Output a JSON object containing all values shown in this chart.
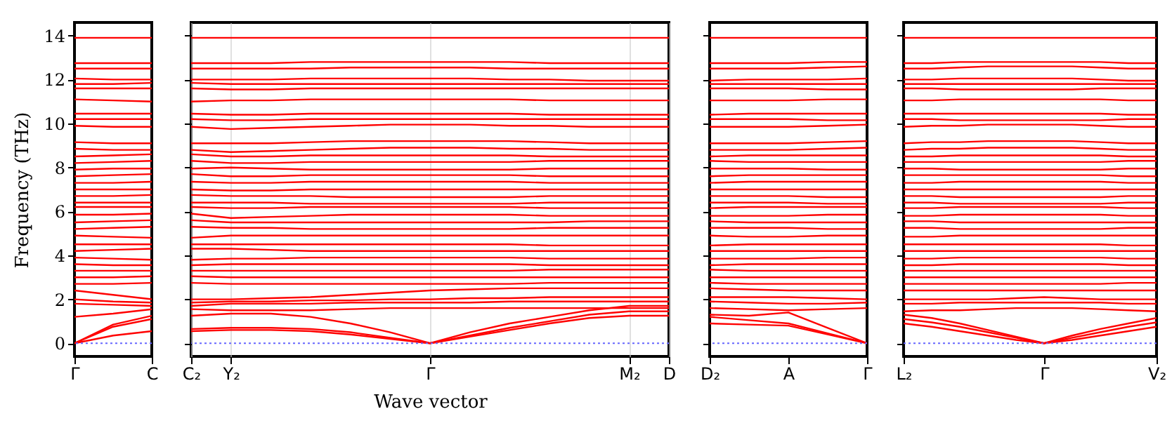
{
  "chart_data": [
    {
      "type": "line",
      "ylabel": "Frequency (THz)",
      "categories": [
        "Γ",
        null,
        "C"
      ],
      "ylim": [
        -0.6,
        14.6
      ],
      "yticks": [
        0,
        2,
        4,
        6,
        8,
        10,
        12,
        14
      ],
      "ref_lines": [
        {
          "axis": "y",
          "value": 0,
          "color": "#6666ff",
          "line_style": "dotted"
        }
      ],
      "series": [
        {
          "color": "#ff0000",
          "values": [
            13.9,
            13.9,
            13.9
          ]
        },
        {
          "color": "#ff0000",
          "values": [
            12.75,
            12.75,
            12.75
          ]
        },
        {
          "color": "#ff0000",
          "values": [
            12.5,
            12.5,
            12.5
          ]
        },
        {
          "color": "#ff0000",
          "values": [
            12.05,
            12.0,
            12.0
          ]
        },
        {
          "color": "#ff0000",
          "values": [
            11.8,
            11.8,
            11.85
          ]
        },
        {
          "color": "#ff0000",
          "values": [
            11.6,
            11.6,
            11.6
          ]
        },
        {
          "color": "#ff0000",
          "values": [
            11.1,
            11.05,
            11.0
          ]
        },
        {
          "color": "#ff0000",
          "values": [
            10.45,
            10.45,
            10.45
          ]
        },
        {
          "color": "#ff0000",
          "values": [
            10.2,
            10.2,
            10.2
          ]
        },
        {
          "color": "#ff0000",
          "values": [
            9.9,
            9.85,
            9.85
          ]
        },
        {
          "color": "#ff0000",
          "values": [
            9.15,
            9.1,
            9.1
          ]
        },
        {
          "color": "#ff0000",
          "values": [
            8.85,
            8.8,
            8.8
          ]
        },
        {
          "color": "#ff0000",
          "values": [
            8.5,
            8.55,
            8.6
          ]
        },
        {
          "color": "#ff0000",
          "values": [
            8.2,
            8.25,
            8.3
          ]
        },
        {
          "color": "#ff0000",
          "values": [
            7.9,
            7.95,
            7.95
          ]
        },
        {
          "color": "#ff0000",
          "values": [
            7.6,
            7.65,
            7.7
          ]
        },
        {
          "color": "#ff0000",
          "values": [
            7.3,
            7.3,
            7.35
          ]
        },
        {
          "color": "#ff0000",
          "values": [
            7.0,
            7.0,
            7.0
          ]
        },
        {
          "color": "#ff0000",
          "values": [
            6.7,
            6.7,
            6.75
          ]
        },
        {
          "color": "#ff0000",
          "values": [
            6.4,
            6.4,
            6.4
          ]
        },
        {
          "color": "#ff0000",
          "values": [
            6.2,
            6.2,
            6.2
          ]
        },
        {
          "color": "#ff0000",
          "values": [
            5.85,
            5.85,
            5.9
          ]
        },
        {
          "color": "#ff0000",
          "values": [
            5.5,
            5.55,
            5.6
          ]
        },
        {
          "color": "#ff0000",
          "values": [
            5.2,
            5.25,
            5.3
          ]
        },
        {
          "color": "#ff0000",
          "values": [
            4.9,
            4.85,
            4.8
          ]
        },
        {
          "color": "#ff0000",
          "values": [
            4.5,
            4.5,
            4.5
          ]
        },
        {
          "color": "#ff0000",
          "values": [
            4.2,
            4.25,
            4.3
          ]
        },
        {
          "color": "#ff0000",
          "values": [
            3.9,
            3.85,
            3.8
          ]
        },
        {
          "color": "#ff0000",
          "values": [
            3.6,
            3.55,
            3.55
          ]
        },
        {
          "color": "#ff0000",
          "values": [
            3.3,
            3.3,
            3.3
          ]
        },
        {
          "color": "#ff0000",
          "values": [
            3.0,
            3.0,
            3.05
          ]
        },
        {
          "color": "#ff0000",
          "values": [
            2.7,
            2.7,
            2.75
          ]
        },
        {
          "color": "#ff0000",
          "values": [
            2.4,
            2.2,
            2.0
          ]
        },
        {
          "color": "#ff0000",
          "values": [
            2.0,
            1.9,
            1.85
          ]
        },
        {
          "color": "#ff0000",
          "values": [
            1.8,
            1.75,
            1.7
          ]
        },
        {
          "color": "#ff0000",
          "values": [
            1.2,
            1.35,
            1.55
          ]
        },
        {
          "color": "#ff0000",
          "values": [
            0,
            0.35,
            0.55
          ]
        },
        {
          "color": "#ff0000",
          "values": [
            0,
            0.75,
            1.1
          ]
        },
        {
          "color": "#ff0000",
          "values": [
            0,
            0.85,
            1.25
          ]
        }
      ]
    },
    {
      "type": "line",
      "xlabel": "Wave vector",
      "categories": [
        "C₂",
        "Y₂",
        null,
        null,
        null,
        null,
        "Γ",
        null,
        null,
        null,
        null,
        "M₂",
        "D"
      ],
      "ylim": [
        -0.6,
        14.6
      ],
      "yticks": [
        0,
        2,
        4,
        6,
        8,
        10,
        12,
        14
      ],
      "grid": "x",
      "tick_labels": "x",
      "ref_lines": [
        {
          "axis": "y",
          "value": 0,
          "color": "#6666ff",
          "line_style": "dotted"
        }
      ],
      "series": [
        {
          "color": "#ff0000",
          "values": [
            13.9,
            13.9,
            13.9,
            13.9,
            13.9,
            13.9,
            13.9,
            13.9,
            13.9,
            13.9,
            13.9,
            13.9,
            13.9
          ]
        },
        {
          "color": "#ff0000",
          "values": [
            12.75,
            12.75,
            12.75,
            12.8,
            12.8,
            12.8,
            12.8,
            12.8,
            12.8,
            12.75,
            12.75,
            12.75,
            12.75
          ]
        },
        {
          "color": "#ff0000",
          "values": [
            12.5,
            12.5,
            12.5,
            12.5,
            12.55,
            12.55,
            12.55,
            12.55,
            12.5,
            12.5,
            12.5,
            12.5,
            12.5
          ]
        },
        {
          "color": "#ff0000",
          "values": [
            12.0,
            12.0,
            12.0,
            12.05,
            12.05,
            12.05,
            12.05,
            12.05,
            12.0,
            12.0,
            11.95,
            11.95,
            11.95
          ]
        },
        {
          "color": "#ff0000",
          "values": [
            11.85,
            11.8,
            11.8,
            11.8,
            11.8,
            11.8,
            11.8,
            11.8,
            11.8,
            11.8,
            11.8,
            11.8,
            11.8
          ]
        },
        {
          "color": "#ff0000",
          "values": [
            11.6,
            11.55,
            11.55,
            11.6,
            11.6,
            11.6,
            11.6,
            11.6,
            11.6,
            11.6,
            11.6,
            11.6,
            11.6
          ]
        },
        {
          "color": "#ff0000",
          "values": [
            11.0,
            11.05,
            11.05,
            11.1,
            11.1,
            11.1,
            11.1,
            11.1,
            11.1,
            11.05,
            11.05,
            11.05,
            11.05
          ]
        },
        {
          "color": "#ff0000",
          "values": [
            10.45,
            10.4,
            10.4,
            10.45,
            10.45,
            10.45,
            10.45,
            10.45,
            10.45,
            10.4,
            10.4,
            10.4,
            10.4
          ]
        },
        {
          "color": "#ff0000",
          "values": [
            10.2,
            10.15,
            10.15,
            10.2,
            10.2,
            10.2,
            10.2,
            10.2,
            10.2,
            10.2,
            10.2,
            10.2,
            10.2
          ]
        },
        {
          "color": "#ff0000",
          "values": [
            9.85,
            9.75,
            9.8,
            9.85,
            9.9,
            9.95,
            9.95,
            9.95,
            9.9,
            9.9,
            9.85,
            9.85,
            9.85
          ]
        },
        {
          "color": "#ff0000",
          "values": [
            9.1,
            9.1,
            9.1,
            9.15,
            9.2,
            9.2,
            9.2,
            9.2,
            9.2,
            9.15,
            9.1,
            9.1,
            9.1
          ]
        },
        {
          "color": "#ff0000",
          "values": [
            8.8,
            8.7,
            8.75,
            8.8,
            8.85,
            8.9,
            8.9,
            8.9,
            8.85,
            8.85,
            8.8,
            8.8,
            8.8
          ]
        },
        {
          "color": "#ff0000",
          "values": [
            8.6,
            8.5,
            8.5,
            8.55,
            8.55,
            8.55,
            8.55,
            8.55,
            8.55,
            8.5,
            8.5,
            8.5,
            8.5
          ]
        },
        {
          "color": "#ff0000",
          "values": [
            8.3,
            8.2,
            8.2,
            8.25,
            8.25,
            8.25,
            8.25,
            8.25,
            8.25,
            8.3,
            8.3,
            8.3,
            8.3
          ]
        },
        {
          "color": "#ff0000",
          "values": [
            7.95,
            8.0,
            7.95,
            7.9,
            7.9,
            7.9,
            7.9,
            7.9,
            7.9,
            7.95,
            7.95,
            7.95,
            7.95
          ]
        },
        {
          "color": "#ff0000",
          "values": [
            7.7,
            7.6,
            7.6,
            7.65,
            7.65,
            7.65,
            7.65,
            7.65,
            7.65,
            7.6,
            7.6,
            7.6,
            7.6
          ]
        },
        {
          "color": "#ff0000",
          "values": [
            7.35,
            7.3,
            7.3,
            7.35,
            7.35,
            7.35,
            7.35,
            7.35,
            7.35,
            7.3,
            7.3,
            7.3,
            7.3
          ]
        },
        {
          "color": "#ff0000",
          "values": [
            7.0,
            6.95,
            6.95,
            7.0,
            7.0,
            7.0,
            7.0,
            7.0,
            7.0,
            7.0,
            7.0,
            7.0,
            7.0
          ]
        },
        {
          "color": "#ff0000",
          "values": [
            6.75,
            6.7,
            6.7,
            6.7,
            6.65,
            6.65,
            6.65,
            6.65,
            6.65,
            6.7,
            6.7,
            6.7,
            6.7
          ]
        },
        {
          "color": "#ff0000",
          "values": [
            6.4,
            6.4,
            6.4,
            6.35,
            6.35,
            6.35,
            6.35,
            6.35,
            6.35,
            6.4,
            6.4,
            6.4,
            6.4
          ]
        },
        {
          "color": "#ff0000",
          "values": [
            6.2,
            6.15,
            6.15,
            6.2,
            6.2,
            6.2,
            6.2,
            6.2,
            6.2,
            6.15,
            6.15,
            6.15,
            6.15
          ]
        },
        {
          "color": "#ff0000",
          "values": [
            5.9,
            5.7,
            5.75,
            5.8,
            5.85,
            5.85,
            5.85,
            5.85,
            5.85,
            5.8,
            5.8,
            5.8,
            5.8
          ]
        },
        {
          "color": "#ff0000",
          "values": [
            5.6,
            5.5,
            5.5,
            5.5,
            5.5,
            5.5,
            5.5,
            5.5,
            5.5,
            5.5,
            5.55,
            5.55,
            5.55
          ]
        },
        {
          "color": "#ff0000",
          "values": [
            5.3,
            5.25,
            5.25,
            5.2,
            5.2,
            5.2,
            5.2,
            5.2,
            5.2,
            5.25,
            5.25,
            5.25,
            5.25
          ]
        },
        {
          "color": "#ff0000",
          "values": [
            4.8,
            4.9,
            4.9,
            4.9,
            4.9,
            4.9,
            4.9,
            4.9,
            4.9,
            4.9,
            4.9,
            4.9,
            4.9
          ]
        },
        {
          "color": "#ff0000",
          "values": [
            4.5,
            4.5,
            4.5,
            4.5,
            4.5,
            4.5,
            4.5,
            4.5,
            4.5,
            4.45,
            4.45,
            4.45,
            4.45
          ]
        },
        {
          "color": "#ff0000",
          "values": [
            4.3,
            4.3,
            4.25,
            4.2,
            4.2,
            4.2,
            4.2,
            4.2,
            4.2,
            4.2,
            4.2,
            4.2,
            4.2
          ]
        },
        {
          "color": "#ff0000",
          "values": [
            3.8,
            3.85,
            3.85,
            3.9,
            3.9,
            3.9,
            3.9,
            3.9,
            3.9,
            3.85,
            3.85,
            3.85,
            3.85
          ]
        },
        {
          "color": "#ff0000",
          "values": [
            3.55,
            3.6,
            3.6,
            3.6,
            3.6,
            3.6,
            3.6,
            3.6,
            3.6,
            3.55,
            3.55,
            3.55,
            3.55
          ]
        },
        {
          "color": "#ff0000",
          "values": [
            3.3,
            3.3,
            3.3,
            3.3,
            3.3,
            3.3,
            3.3,
            3.3,
            3.3,
            3.35,
            3.35,
            3.35,
            3.35
          ]
        },
        {
          "color": "#ff0000",
          "values": [
            3.05,
            3.0,
            3.0,
            3.0,
            3.0,
            3.0,
            3.0,
            3.0,
            3.0,
            3.0,
            3.0,
            3.0,
            3.0
          ]
        },
        {
          "color": "#ff0000",
          "values": [
            2.75,
            2.7,
            2.7,
            2.7,
            2.7,
            2.7,
            2.7,
            2.7,
            2.7,
            2.75,
            2.75,
            2.75,
            2.75
          ]
        },
        {
          "color": "#ff0000",
          "values": [
            2.0,
            2.0,
            2.05,
            2.1,
            2.2,
            2.3,
            2.4,
            2.45,
            2.5,
            2.5,
            2.5,
            2.5,
            2.5
          ]
        },
        {
          "color": "#ff0000",
          "values": [
            1.85,
            1.9,
            1.9,
            1.95,
            1.95,
            2.0,
            2.0,
            2.05,
            2.05,
            2.1,
            2.1,
            2.1,
            2.1
          ]
        },
        {
          "color": "#ff0000",
          "values": [
            1.7,
            1.8,
            1.8,
            1.8,
            1.85,
            1.85,
            1.85,
            1.85,
            1.9,
            1.9,
            1.9,
            1.9,
            1.9
          ]
        },
        {
          "color": "#ff0000",
          "values": [
            1.55,
            1.5,
            1.5,
            1.5,
            1.55,
            1.6,
            1.6,
            1.6,
            1.6,
            1.6,
            1.6,
            1.6,
            1.6
          ]
        },
        {
          "color": "#ff0000",
          "values": [
            0.55,
            0.6,
            0.6,
            0.55,
            0.4,
            0.2,
            0,
            0.3,
            0.6,
            0.9,
            1.15,
            1.25,
            1.25
          ]
        },
        {
          "color": "#ff0000",
          "values": [
            0.65,
            0.7,
            0.7,
            0.65,
            0.5,
            0.25,
            0,
            0.35,
            0.7,
            1.0,
            1.3,
            1.45,
            1.45
          ]
        },
        {
          "color": "#ff0000",
          "values": [
            1.25,
            1.35,
            1.35,
            1.2,
            0.9,
            0.5,
            0,
            0.5,
            0.9,
            1.2,
            1.5,
            1.7,
            1.7
          ]
        }
      ]
    },
    {
      "type": "line",
      "categories": [
        "D₂",
        null,
        "A",
        null,
        "Γ"
      ],
      "ylim": [
        -0.6,
        14.6
      ],
      "yticks": [
        0,
        2,
        4,
        6,
        8,
        10,
        12,
        14
      ],
      "tick_labels": "x",
      "ref_lines": [
        {
          "axis": "y",
          "value": 0,
          "color": "#6666ff",
          "line_style": "dotted"
        }
      ],
      "series": [
        {
          "color": "#ff0000",
          "values": [
            13.9,
            13.9,
            13.9,
            13.9,
            13.9
          ]
        },
        {
          "color": "#ff0000",
          "values": [
            12.75,
            12.75,
            12.75,
            12.8,
            12.8
          ]
        },
        {
          "color": "#ff0000",
          "values": [
            12.5,
            12.5,
            12.5,
            12.55,
            12.6
          ]
        },
        {
          "color": "#ff0000",
          "values": [
            11.95,
            12.0,
            12.0,
            12.0,
            12.05
          ]
        },
        {
          "color": "#ff0000",
          "values": [
            11.8,
            11.8,
            11.8,
            11.8,
            11.8
          ]
        },
        {
          "color": "#ff0000",
          "values": [
            11.6,
            11.6,
            11.6,
            11.55,
            11.55
          ]
        },
        {
          "color": "#ff0000",
          "values": [
            11.05,
            11.05,
            11.05,
            11.1,
            11.1
          ]
        },
        {
          "color": "#ff0000",
          "values": [
            10.4,
            10.45,
            10.45,
            10.45,
            10.45
          ]
        },
        {
          "color": "#ff0000",
          "values": [
            10.2,
            10.2,
            10.2,
            10.15,
            10.15
          ]
        },
        {
          "color": "#ff0000",
          "values": [
            9.85,
            9.85,
            9.85,
            9.9,
            9.95
          ]
        },
        {
          "color": "#ff0000",
          "values": [
            9.1,
            9.1,
            9.1,
            9.15,
            9.2
          ]
        },
        {
          "color": "#ff0000",
          "values": [
            8.8,
            8.8,
            8.8,
            8.85,
            8.9
          ]
        },
        {
          "color": "#ff0000",
          "values": [
            8.5,
            8.55,
            8.55,
            8.55,
            8.55
          ]
        },
        {
          "color": "#ff0000",
          "values": [
            8.3,
            8.25,
            8.25,
            8.25,
            8.25
          ]
        },
        {
          "color": "#ff0000",
          "values": [
            7.95,
            7.95,
            7.95,
            7.9,
            7.9
          ]
        },
        {
          "color": "#ff0000",
          "values": [
            7.6,
            7.65,
            7.65,
            7.65,
            7.65
          ]
        },
        {
          "color": "#ff0000",
          "values": [
            7.3,
            7.35,
            7.35,
            7.35,
            7.35
          ]
        },
        {
          "color": "#ff0000",
          "values": [
            7.0,
            7.0,
            7.0,
            7.0,
            7.0
          ]
        },
        {
          "color": "#ff0000",
          "values": [
            6.7,
            6.7,
            6.7,
            6.65,
            6.65
          ]
        },
        {
          "color": "#ff0000",
          "values": [
            6.4,
            6.4,
            6.4,
            6.35,
            6.35
          ]
        },
        {
          "color": "#ff0000",
          "values": [
            6.15,
            6.2,
            6.2,
            6.2,
            6.2
          ]
        },
        {
          "color": "#ff0000",
          "values": [
            5.8,
            5.8,
            5.8,
            5.85,
            5.85
          ]
        },
        {
          "color": "#ff0000",
          "values": [
            5.55,
            5.5,
            5.5,
            5.5,
            5.5
          ]
        },
        {
          "color": "#ff0000",
          "values": [
            5.25,
            5.25,
            5.25,
            5.2,
            5.2
          ]
        },
        {
          "color": "#ff0000",
          "values": [
            4.9,
            4.85,
            4.85,
            4.9,
            4.9
          ]
        },
        {
          "color": "#ff0000",
          "values": [
            4.45,
            4.5,
            4.5,
            4.5,
            4.5
          ]
        },
        {
          "color": "#ff0000",
          "values": [
            4.2,
            4.2,
            4.2,
            4.2,
            4.2
          ]
        },
        {
          "color": "#ff0000",
          "values": [
            3.85,
            3.85,
            3.85,
            3.9,
            3.9
          ]
        },
        {
          "color": "#ff0000",
          "values": [
            3.55,
            3.6,
            3.6,
            3.6,
            3.6
          ]
        },
        {
          "color": "#ff0000",
          "values": [
            3.35,
            3.3,
            3.3,
            3.3,
            3.3
          ]
        },
        {
          "color": "#ff0000",
          "values": [
            3.0,
            3.0,
            3.0,
            3.0,
            3.0
          ]
        },
        {
          "color": "#ff0000",
          "values": [
            2.75,
            2.7,
            2.7,
            2.7,
            2.7
          ]
        },
        {
          "color": "#ff0000",
          "values": [
            2.5,
            2.45,
            2.4,
            2.4,
            2.4
          ]
        },
        {
          "color": "#ff0000",
          "values": [
            2.1,
            2.1,
            2.1,
            2.05,
            2.0
          ]
        },
        {
          "color": "#ff0000",
          "values": [
            1.9,
            1.85,
            1.8,
            1.8,
            1.85
          ]
        },
        {
          "color": "#ff0000",
          "values": [
            1.6,
            1.55,
            1.5,
            1.55,
            1.6
          ]
        },
        {
          "color": "#ff0000",
          "values": [
            0.9,
            0.85,
            0.8,
            0.4,
            0
          ]
        },
        {
          "color": "#ff0000",
          "values": [
            1.2,
            1.05,
            0.9,
            0.45,
            0
          ]
        },
        {
          "color": "#ff0000",
          "values": [
            1.3,
            1.25,
            1.4,
            0.7,
            0
          ]
        }
      ]
    },
    {
      "type": "line",
      "categories": [
        "L₂",
        null,
        null,
        null,
        null,
        "Γ",
        null,
        null,
        null,
        "V₂"
      ],
      "ylim": [
        -0.6,
        14.6
      ],
      "yticks": [
        0,
        2,
        4,
        6,
        8,
        10,
        12,
        14
      ],
      "tick_labels": "x",
      "ref_lines": [
        {
          "axis": "y",
          "value": 0,
          "color": "#6666ff",
          "line_style": "dotted"
        }
      ],
      "series": [
        {
          "color": "#ff0000",
          "values": [
            13.9,
            13.9,
            13.9,
            13.9,
            13.9,
            13.9,
            13.9,
            13.9,
            13.9,
            13.9
          ]
        },
        {
          "color": "#ff0000",
          "values": [
            12.75,
            12.75,
            12.8,
            12.8,
            12.8,
            12.8,
            12.8,
            12.8,
            12.75,
            12.75
          ]
        },
        {
          "color": "#ff0000",
          "values": [
            12.5,
            12.5,
            12.55,
            12.6,
            12.6,
            12.6,
            12.6,
            12.55,
            12.5,
            12.5
          ]
        },
        {
          "color": "#ff0000",
          "values": [
            12.0,
            12.0,
            12.05,
            12.05,
            12.05,
            12.05,
            12.05,
            12.0,
            11.95,
            11.95
          ]
        },
        {
          "color": "#ff0000",
          "values": [
            11.8,
            11.8,
            11.8,
            11.8,
            11.8,
            11.8,
            11.8,
            11.8,
            11.8,
            11.8
          ]
        },
        {
          "color": "#ff0000",
          "values": [
            11.6,
            11.6,
            11.55,
            11.55,
            11.55,
            11.55,
            11.55,
            11.6,
            11.6,
            11.6
          ]
        },
        {
          "color": "#ff0000",
          "values": [
            11.05,
            11.05,
            11.1,
            11.1,
            11.1,
            11.1,
            11.1,
            11.1,
            11.05,
            11.05
          ]
        },
        {
          "color": "#ff0000",
          "values": [
            10.45,
            10.45,
            10.45,
            10.45,
            10.45,
            10.45,
            10.45,
            10.45,
            10.4,
            10.4
          ]
        },
        {
          "color": "#ff0000",
          "values": [
            10.2,
            10.2,
            10.15,
            10.15,
            10.15,
            10.15,
            10.15,
            10.15,
            10.2,
            10.2
          ]
        },
        {
          "color": "#ff0000",
          "values": [
            9.85,
            9.9,
            9.9,
            9.95,
            9.95,
            9.95,
            9.95,
            9.9,
            9.85,
            9.85
          ]
        },
        {
          "color": "#ff0000",
          "values": [
            9.1,
            9.15,
            9.15,
            9.2,
            9.2,
            9.2,
            9.2,
            9.15,
            9.1,
            9.1
          ]
        },
        {
          "color": "#ff0000",
          "values": [
            8.8,
            8.85,
            8.85,
            8.9,
            8.9,
            8.9,
            8.9,
            8.85,
            8.8,
            8.8
          ]
        },
        {
          "color": "#ff0000",
          "values": [
            8.5,
            8.5,
            8.55,
            8.55,
            8.55,
            8.55,
            8.55,
            8.55,
            8.5,
            8.5
          ]
        },
        {
          "color": "#ff0000",
          "values": [
            8.25,
            8.25,
            8.25,
            8.25,
            8.25,
            8.25,
            8.25,
            8.25,
            8.3,
            8.3
          ]
        },
        {
          "color": "#ff0000",
          "values": [
            7.95,
            7.95,
            7.9,
            7.9,
            7.9,
            7.9,
            7.9,
            7.9,
            7.95,
            7.95
          ]
        },
        {
          "color": "#ff0000",
          "values": [
            7.65,
            7.65,
            7.65,
            7.65,
            7.65,
            7.65,
            7.65,
            7.65,
            7.6,
            7.6
          ]
        },
        {
          "color": "#ff0000",
          "values": [
            7.3,
            7.3,
            7.35,
            7.35,
            7.35,
            7.35,
            7.35,
            7.35,
            7.3,
            7.3
          ]
        },
        {
          "color": "#ff0000",
          "values": [
            7.0,
            7.0,
            7.0,
            7.0,
            7.0,
            7.0,
            7.0,
            7.0,
            7.0,
            7.0
          ]
        },
        {
          "color": "#ff0000",
          "values": [
            6.7,
            6.7,
            6.65,
            6.65,
            6.65,
            6.65,
            6.65,
            6.65,
            6.7,
            6.7
          ]
        },
        {
          "color": "#ff0000",
          "values": [
            6.4,
            6.4,
            6.35,
            6.35,
            6.35,
            6.35,
            6.35,
            6.35,
            6.4,
            6.4
          ]
        },
        {
          "color": "#ff0000",
          "values": [
            6.15,
            6.15,
            6.2,
            6.2,
            6.2,
            6.2,
            6.2,
            6.2,
            6.15,
            6.15
          ]
        },
        {
          "color": "#ff0000",
          "values": [
            5.8,
            5.8,
            5.85,
            5.85,
            5.85,
            5.85,
            5.85,
            5.85,
            5.8,
            5.8
          ]
        },
        {
          "color": "#ff0000",
          "values": [
            5.55,
            5.55,
            5.5,
            5.5,
            5.5,
            5.5,
            5.5,
            5.5,
            5.5,
            5.5
          ]
        },
        {
          "color": "#ff0000",
          "values": [
            5.25,
            5.25,
            5.2,
            5.2,
            5.2,
            5.2,
            5.2,
            5.2,
            5.25,
            5.25
          ]
        },
        {
          "color": "#ff0000",
          "values": [
            4.85,
            4.85,
            4.9,
            4.9,
            4.9,
            4.9,
            4.9,
            4.9,
            4.9,
            4.9
          ]
        },
        {
          "color": "#ff0000",
          "values": [
            4.5,
            4.5,
            4.5,
            4.5,
            4.5,
            4.5,
            4.5,
            4.5,
            4.45,
            4.45
          ]
        },
        {
          "color": "#ff0000",
          "values": [
            4.2,
            4.2,
            4.2,
            4.2,
            4.2,
            4.2,
            4.2,
            4.2,
            4.2,
            4.2
          ]
        },
        {
          "color": "#ff0000",
          "values": [
            3.85,
            3.85,
            3.9,
            3.9,
            3.9,
            3.9,
            3.9,
            3.9,
            3.85,
            3.85
          ]
        },
        {
          "color": "#ff0000",
          "values": [
            3.55,
            3.55,
            3.6,
            3.6,
            3.6,
            3.6,
            3.6,
            3.6,
            3.55,
            3.55
          ]
        },
        {
          "color": "#ff0000",
          "values": [
            3.3,
            3.3,
            3.3,
            3.3,
            3.3,
            3.3,
            3.3,
            3.3,
            3.3,
            3.3
          ]
        },
        {
          "color": "#ff0000",
          "values": [
            3.0,
            3.0,
            3.0,
            3.0,
            3.0,
            3.0,
            3.0,
            3.0,
            3.0,
            3.0
          ]
        },
        {
          "color": "#ff0000",
          "values": [
            2.7,
            2.7,
            2.7,
            2.7,
            2.7,
            2.7,
            2.7,
            2.7,
            2.75,
            2.75
          ]
        },
        {
          "color": "#ff0000",
          "values": [
            2.4,
            2.4,
            2.4,
            2.4,
            2.4,
            2.4,
            2.4,
            2.4,
            2.4,
            2.4
          ]
        },
        {
          "color": "#ff0000",
          "values": [
            2.0,
            2.0,
            2.0,
            2.0,
            2.05,
            2.1,
            2.05,
            2.0,
            2.0,
            2.0
          ]
        },
        {
          "color": "#ff0000",
          "values": [
            1.8,
            1.8,
            1.85,
            1.85,
            1.85,
            1.85,
            1.85,
            1.85,
            1.8,
            1.8
          ]
        },
        {
          "color": "#ff0000",
          "values": [
            1.45,
            1.5,
            1.5,
            1.55,
            1.6,
            1.6,
            1.6,
            1.55,
            1.5,
            1.45
          ]
        },
        {
          "color": "#ff0000",
          "values": [
            0.9,
            0.75,
            0.55,
            0.35,
            0.15,
            0,
            0.15,
            0.35,
            0.55,
            0.75
          ]
        },
        {
          "color": "#ff0000",
          "values": [
            1.1,
            0.95,
            0.75,
            0.5,
            0.25,
            0,
            0.25,
            0.5,
            0.75,
            0.95
          ]
        },
        {
          "color": "#ff0000",
          "values": [
            1.3,
            1.15,
            0.9,
            0.6,
            0.3,
            0,
            0.35,
            0.65,
            0.9,
            1.15
          ]
        }
      ]
    }
  ]
}
